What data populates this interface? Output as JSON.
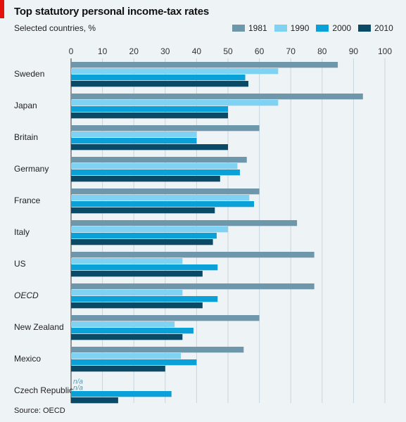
{
  "title": "Top statutory personal income-tax rates",
  "subtitle": "Selected countries, %",
  "source": "Source: OECD",
  "colors": {
    "accent_red": "#e3120b",
    "s1981": "#6f97ab",
    "s1990": "#7fd2f2",
    "s2000": "#0aa0d8",
    "s2010": "#0b4a66"
  },
  "chart_data": {
    "type": "bar",
    "orientation": "horizontal",
    "title": "Top statutory personal income-tax rates",
    "subtitle": "Selected countries, %",
    "xlim": [
      0,
      100
    ],
    "x_ticks": [
      "0",
      "10",
      "20",
      "30",
      "40",
      "50",
      "60",
      "70",
      "80",
      "90",
      "100"
    ],
    "grid": true,
    "legend_position": "top-right",
    "categories": [
      "Sweden",
      "Japan",
      "Britain",
      "Germany",
      "France",
      "Italy",
      "US",
      "OECD",
      "New Zealand",
      "Mexico",
      "Czech Republic"
    ],
    "italic_categories": [
      "OECD"
    ],
    "series": [
      {
        "name": "1981",
        "color": "#6f97ab",
        "values": [
          85,
          93,
          60,
          56,
          60,
          72,
          77.5,
          77.5,
          60,
          55,
          null
        ]
      },
      {
        "name": "1990",
        "color": "#7fd2f2",
        "values": [
          66,
          66,
          40,
          53,
          56.8,
          50,
          35.5,
          35.5,
          33,
          35,
          null
        ]
      },
      {
        "name": "2000",
        "color": "#0aa0d8",
        "values": [
          55.5,
          50,
          40,
          53.8,
          58.3,
          46.4,
          46.7,
          46.7,
          39,
          40,
          32
        ]
      },
      {
        "name": "2010",
        "color": "#0b4a66",
        "values": [
          56.5,
          50,
          50,
          47.5,
          45.8,
          45.2,
          41.9,
          41.9,
          35.5,
          30,
          15
        ]
      }
    ],
    "missing_label": "n/a"
  }
}
